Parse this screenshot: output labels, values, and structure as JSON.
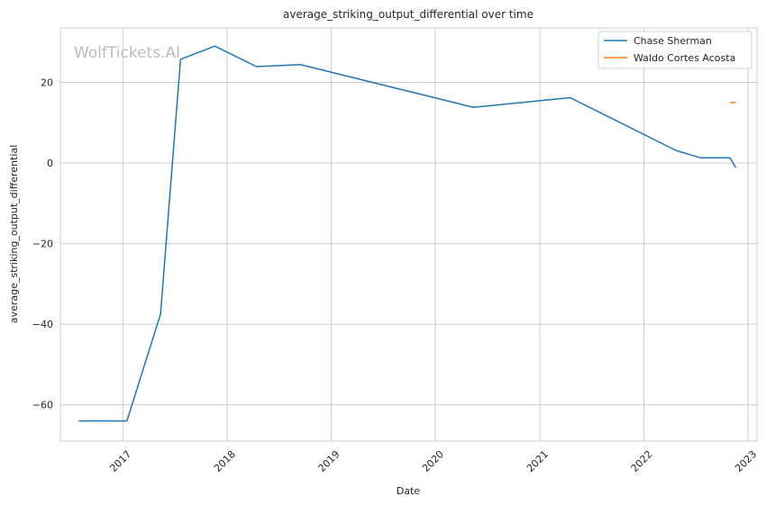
{
  "chart_data": {
    "type": "line",
    "title": "average_striking_output_differential over time",
    "xlabel": "Date",
    "ylabel": "average_striking_output_differential",
    "watermark": "WolfTickets.AI",
    "x_ticks": [
      "2017",
      "2018",
      "2019",
      "2020",
      "2021",
      "2022",
      "2023"
    ],
    "y_ticks": [
      -60,
      -40,
      -20,
      0,
      20
    ],
    "xlim": [
      "2016-05-27",
      "2023-02-01"
    ],
    "ylim": [
      -69,
      33.5
    ],
    "grid": true,
    "legend_position": "top-right",
    "series": [
      {
        "name": "Chase Sherman",
        "color": "#1f77b4",
        "points": [
          {
            "x": "2016-07-30",
            "y": -64
          },
          {
            "x": "2017-01-15",
            "y": -64
          },
          {
            "x": "2017-05-13",
            "y": -37.5
          },
          {
            "x": "2017-07-22",
            "y": 25.7
          },
          {
            "x": "2017-11-19",
            "y": 29
          },
          {
            "x": "2018-04-14",
            "y": 23.9
          },
          {
            "x": "2018-09-15",
            "y": 24.4
          },
          {
            "x": "2020-05-13",
            "y": 13.8
          },
          {
            "x": "2021-04-17",
            "y": 16.2
          },
          {
            "x": "2022-04-23",
            "y": 3.1
          },
          {
            "x": "2022-07-16",
            "y": 1.3
          },
          {
            "x": "2022-10-29",
            "y": 1.3
          },
          {
            "x": "2022-11-19",
            "y": -1.2
          }
        ]
      },
      {
        "name": "Waldo Cortes Acosta",
        "color": "#ff7f0e",
        "points": [
          {
            "x": "2022-10-29",
            "y": 15
          },
          {
            "x": "2022-11-19",
            "y": 15
          }
        ]
      }
    ]
  }
}
